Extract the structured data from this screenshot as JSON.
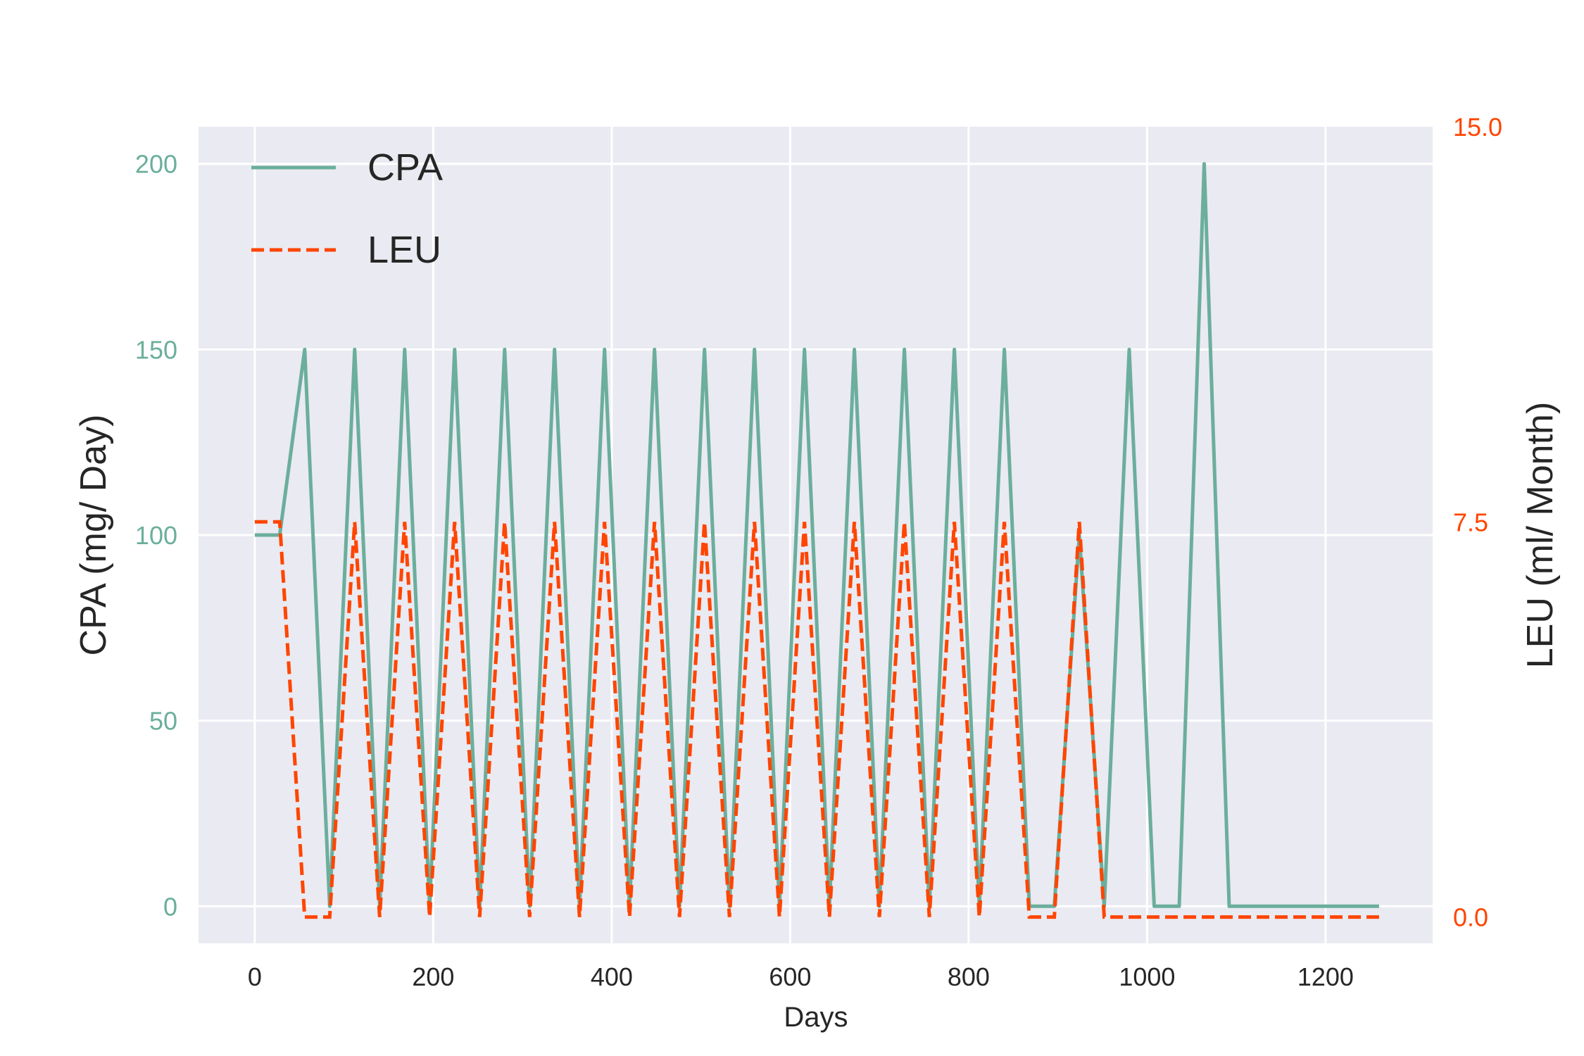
{
  "chart_data": {
    "type": "line",
    "x_label": "Days",
    "y_label": "CPA (mg/ Day)",
    "y2_label": "LEU (ml/ Month)",
    "x_ticks": [
      0,
      200,
      400,
      600,
      800,
      1000,
      1200
    ],
    "y_ticks": [
      0,
      50,
      100,
      150,
      200
    ],
    "y2_ticks": [
      "0.0",
      "7.5",
      "15.0"
    ],
    "xlim": [
      -63,
      1320
    ],
    "ylim": [
      -10,
      210
    ],
    "y2lim": [
      -0.5,
      15
    ],
    "grid": true,
    "legend_position": "upper-left",
    "colors": {
      "cpa": "#6bae9c",
      "leu": "#ff4500",
      "plot_bg": "#eaeaf2",
      "grid": "#ffffff",
      "text": "#262626"
    },
    "series": [
      {
        "name": "CPA",
        "axis": "left",
        "style": "solid",
        "x": [
          0,
          28,
          56,
          84,
          112,
          140,
          168,
          196,
          224,
          252,
          280,
          308,
          336,
          364,
          392,
          420,
          448,
          476,
          504,
          532,
          560,
          588,
          616,
          644,
          672,
          700,
          728,
          756,
          784,
          812,
          840,
          868,
          896,
          924,
          952,
          980,
          1008,
          1036,
          1064,
          1092,
          1120,
          1148,
          1176,
          1204,
          1232,
          1260
        ],
        "y": [
          100,
          100,
          150,
          0,
          150,
          0,
          150,
          0,
          150,
          0,
          150,
          0,
          150,
          0,
          150,
          0,
          150,
          0,
          150,
          0,
          150,
          0,
          150,
          0,
          150,
          0,
          150,
          0,
          150,
          0,
          150,
          0,
          0,
          100,
          0,
          150,
          0,
          0,
          200,
          0,
          0,
          0,
          0,
          0,
          0,
          0
        ]
      },
      {
        "name": "LEU",
        "axis": "right",
        "style": "dashed",
        "x": [
          0,
          28,
          56,
          84,
          112,
          140,
          168,
          196,
          224,
          252,
          280,
          308,
          336,
          364,
          392,
          420,
          448,
          476,
          504,
          532,
          560,
          588,
          616,
          644,
          672,
          700,
          728,
          756,
          784,
          812,
          840,
          868,
          896,
          924,
          952,
          980,
          1008,
          1036,
          1064,
          1092,
          1120,
          1148,
          1176,
          1204,
          1232,
          1260
        ],
        "y": [
          7.5,
          7.5,
          0,
          0,
          7.5,
          0,
          7.5,
          0,
          7.5,
          0,
          7.5,
          0,
          7.5,
          0,
          7.5,
          0,
          7.5,
          0,
          7.5,
          0,
          7.5,
          0,
          7.5,
          0,
          7.5,
          0,
          7.5,
          0,
          7.5,
          0,
          7.5,
          0,
          0,
          7.5,
          0,
          0,
          0,
          0,
          0,
          0,
          0,
          0,
          0,
          0,
          0,
          0
        ]
      }
    ]
  }
}
